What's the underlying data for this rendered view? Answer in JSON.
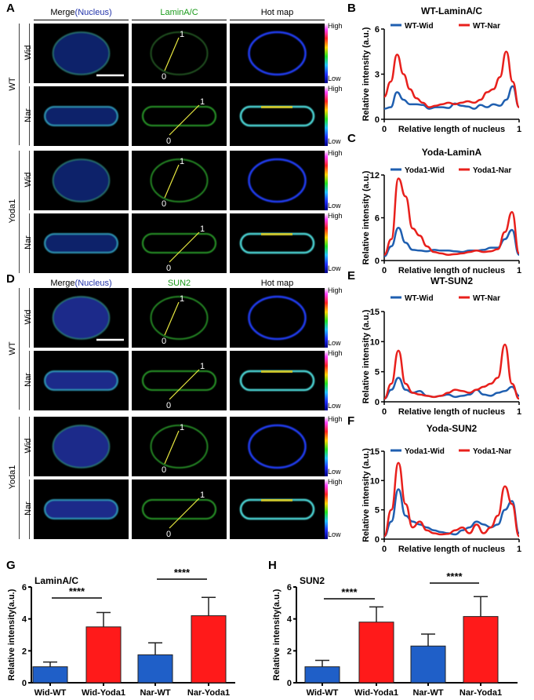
{
  "panel_letters": {
    "A": "A",
    "B": "B",
    "C": "C",
    "D": "D",
    "E": "E",
    "F": "F",
    "G": "G",
    "H": "H"
  },
  "image_panels": [
    {
      "id": "A",
      "stain": "LaminA/C",
      "stain_color": "#1a9a1a",
      "headers": {
        "merge": "Merge",
        "merge_paren": "(Nucleus)",
        "stain": "LaminA/C",
        "hot": "Hot map"
      },
      "groups": [
        {
          "label": "WT",
          "rows": [
            "Wid",
            "Nar"
          ]
        },
        {
          "label": "Yoda1",
          "rows": [
            "Wid",
            "Nar"
          ]
        }
      ]
    },
    {
      "id": "D",
      "stain": "SUN2",
      "stain_color": "#1a9a1a",
      "headers": {
        "merge": "Merge",
        "merge_paren": "(Nucleus)",
        "stain": "SUN2",
        "hot": "Hot map"
      },
      "groups": [
        {
          "label": "WT",
          "rows": [
            "Wid",
            "Nar"
          ]
        },
        {
          "label": "Yoda1",
          "rows": [
            "Wid",
            "Nar"
          ]
        }
      ]
    }
  ],
  "colorbar": {
    "high": "High",
    "low": "Low"
  },
  "line_endpoints": {
    "start": "0",
    "end": "1"
  },
  "colors": {
    "nucleus_blue": "#2233aa",
    "blue_series": "#1f5fb0",
    "red_series": "#e8201c",
    "bar_blue": "#1f5fc8",
    "bar_red": "#ff1a1a"
  },
  "chart_data": [
    {
      "id": "B",
      "type": "line",
      "title": "WT-LaminA/C",
      "xlabel": "Relative length of nucleus",
      "ylabel": "Relative intensity (a.u.)",
      "xlim": [
        0,
        1
      ],
      "ylim": [
        0,
        6
      ],
      "yticks": [
        0,
        3,
        6
      ],
      "xticks": [
        0,
        1
      ],
      "legend": "top",
      "series": [
        {
          "name": "WT-Wid",
          "color": "#1f5fb0",
          "values": [
            0.7,
            0.8,
            1.8,
            1.3,
            1.0,
            1.0,
            0.95,
            0.7,
            0.8,
            0.8,
            0.75,
            1.05,
            0.9,
            0.85,
            0.7,
            0.95,
            0.8,
            1.0,
            0.9,
            1.3,
            2.2,
            0.8
          ]
        },
        {
          "name": "WT-Nar",
          "color": "#e8201c",
          "values": [
            1.5,
            2.5,
            4.3,
            3.0,
            2.0,
            1.4,
            1.1,
            0.8,
            0.9,
            1.0,
            1.1,
            1.0,
            1.1,
            1.2,
            1.1,
            1.3,
            1.8,
            2.0,
            2.8,
            4.5,
            2.5,
            0.8
          ]
        }
      ]
    },
    {
      "id": "C",
      "type": "line",
      "title": "Yoda-LaminA",
      "xlabel": "Relative length of nucleus",
      "ylabel": "Relative intensity (a.u.)",
      "xlim": [
        0,
        1
      ],
      "ylim": [
        0,
        12
      ],
      "yticks": [
        0,
        6,
        12
      ],
      "xticks": [
        0,
        1
      ],
      "legend": "top",
      "series": [
        {
          "name": "Yoda1-Wid",
          "color": "#1f5fb0",
          "values": [
            0.6,
            2.0,
            4.6,
            2.5,
            1.5,
            1.4,
            1.3,
            1.5,
            1.4,
            1.4,
            1.3,
            1.2,
            1.4,
            1.4,
            1.5,
            1.8,
            1.8,
            3.0,
            4.3,
            0.8
          ]
        },
        {
          "name": "Yoda1-Nar",
          "color": "#e8201c",
          "values": [
            0.8,
            3.0,
            11.5,
            9.0,
            4.5,
            3.5,
            2.0,
            1.2,
            1.0,
            0.8,
            0.9,
            1.0,
            1.2,
            1.4,
            1.2,
            1.3,
            1.6,
            4.0,
            6.8,
            1.0
          ]
        }
      ]
    },
    {
      "id": "E",
      "type": "line",
      "title": "WT-SUN2",
      "xlabel": "Relative length of nucleus",
      "ylabel": "Relative intensity (a.u.)",
      "xlim": [
        0,
        1
      ],
      "ylim": [
        0,
        15
      ],
      "yticks": [
        0,
        5,
        10,
        15
      ],
      "xticks": [
        0,
        1
      ],
      "legend": "top",
      "series": [
        {
          "name": "WT-Wid",
          "color": "#1f5fb0",
          "values": [
            0.5,
            2.0,
            4.0,
            2.0,
            1.5,
            1.8,
            1.0,
            0.8,
            1.0,
            1.2,
            0.8,
            1.0,
            1.2,
            2.0,
            1.2,
            1.0,
            1.5,
            1.8,
            2.5,
            1.0
          ]
        },
        {
          "name": "WT-Nar",
          "color": "#e8201c",
          "values": [
            0.5,
            3.0,
            8.5,
            3.0,
            1.5,
            1.2,
            1.0,
            0.8,
            1.0,
            1.5,
            2.0,
            1.8,
            1.5,
            2.0,
            2.5,
            3.0,
            4.0,
            9.5,
            3.0,
            0.5
          ]
        }
      ]
    },
    {
      "id": "F",
      "type": "line",
      "title": "Yoda-SUN2",
      "xlabel": "Relative length of nucleus",
      "ylabel": "Relative intensity (a.u.)",
      "xlim": [
        0,
        1
      ],
      "ylim": [
        0,
        15
      ],
      "yticks": [
        0,
        5,
        10,
        15
      ],
      "xticks": [
        0,
        1
      ],
      "legend": "top",
      "series": [
        {
          "name": "Yoda1-Wid",
          "color": "#1f5fb0",
          "values": [
            0.5,
            3.0,
            8.5,
            4.0,
            3.0,
            2.5,
            2.0,
            1.5,
            1.2,
            1.0,
            0.8,
            1.5,
            2.0,
            3.0,
            2.5,
            2.0,
            2.5,
            5.0,
            6.5,
            1.0
          ]
        },
        {
          "name": "Yoda1-Nar",
          "color": "#e8201c",
          "values": [
            0.5,
            5.0,
            13.0,
            6.0,
            2.0,
            3.0,
            1.5,
            1.0,
            0.8,
            0.9,
            1.5,
            2.0,
            1.0,
            2.5,
            1.0,
            2.0,
            4.0,
            9.0,
            6.0,
            0.5
          ]
        }
      ]
    },
    {
      "id": "G",
      "type": "bar",
      "title": "LaminA/C",
      "ylabel": "Relative intensity(a.u.)",
      "ylim": [
        0,
        6
      ],
      "yticks": [
        0,
        2,
        4,
        6
      ],
      "categories": [
        "Wid-WT",
        "Wid-Yoda1",
        "Nar-WT",
        "Nar-Yoda1"
      ],
      "values": [
        1.0,
        3.5,
        1.75,
        4.2
      ],
      "errors": [
        0.3,
        0.9,
        0.75,
        1.15
      ],
      "bar_colors": [
        "#1f5fc8",
        "#ff1a1a",
        "#1f5fc8",
        "#ff1a1a"
      ],
      "significance": [
        {
          "pair": [
            0,
            1
          ],
          "label": "****"
        },
        {
          "pair": [
            2,
            3
          ],
          "label": "****"
        }
      ]
    },
    {
      "id": "H",
      "type": "bar",
      "title": "SUN2",
      "ylabel": "Relative intensity(a.u.)",
      "ylim": [
        0,
        6
      ],
      "yticks": [
        0,
        2,
        4,
        6
      ],
      "categories": [
        "Wid-WT",
        "Wid-Yoda1",
        "Nar-WT",
        "Nar-Yoda1"
      ],
      "values": [
        1.0,
        3.8,
        2.3,
        4.15
      ],
      "errors": [
        0.4,
        0.95,
        0.75,
        1.25
      ],
      "bar_colors": [
        "#1f5fc8",
        "#ff1a1a",
        "#1f5fc8",
        "#ff1a1a"
      ],
      "significance": [
        {
          "pair": [
            0,
            1
          ],
          "label": "****"
        },
        {
          "pair": [
            2,
            3
          ],
          "label": "****"
        }
      ]
    }
  ]
}
